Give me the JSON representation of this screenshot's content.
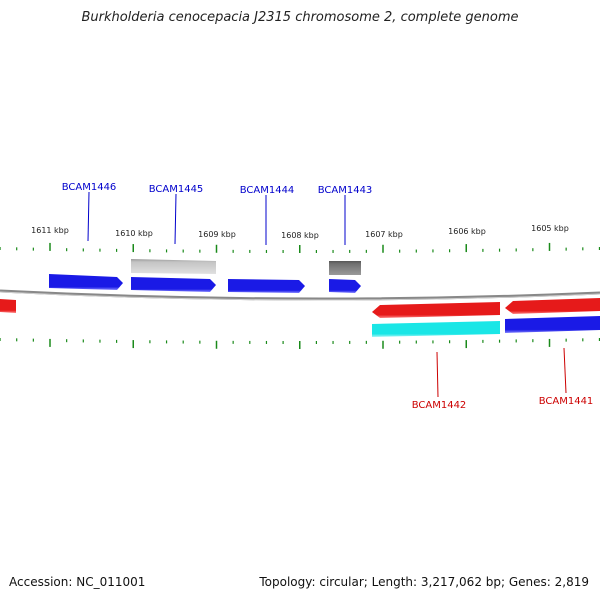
{
  "title": "Burkholderia cenocepacia J2315 chromosome 2, complete genome",
  "footer": {
    "accession": "Accession: NC_011001",
    "summary": "Topology: circular; Length: 3,217,062 bp; Genes: 2,819"
  },
  "colors": {
    "forward_gene": "#1a1ae6",
    "reverse_gene": "#e61a1a",
    "cyan_feature": "#1ae6e6",
    "pseudo_light": "#b8b8b8",
    "pseudo_dark": "#6e6e6e",
    "backbone": "#808080",
    "ticks": "#1a8a1a",
    "forward_label": "#0000cc",
    "reverse_label": "#cc0000"
  },
  "scale": {
    "unit": "kbp",
    "major_ticks": [
      "1611 kbp",
      "1610 kbp",
      "1609 kbp",
      "1608 kbp",
      "1607 kbp",
      "1606 kbp",
      "1605 kbp"
    ]
  },
  "genes": [
    {
      "id": "BCAM1446",
      "strand": "forward",
      "labeled": true
    },
    {
      "id": "BCAM1445",
      "strand": "forward",
      "labeled": true
    },
    {
      "id": "BCAM1444",
      "strand": "forward",
      "labeled": true
    },
    {
      "id": "BCAM1443",
      "strand": "forward",
      "labeled": true
    },
    {
      "id": "BCAM1442",
      "strand": "reverse",
      "labeled": true
    },
    {
      "id": "BCAM1441",
      "strand": "reverse",
      "labeled": true
    }
  ]
}
